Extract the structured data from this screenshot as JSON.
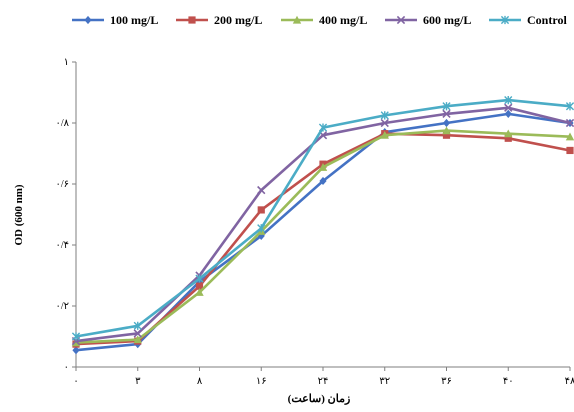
{
  "chart_data": {
    "type": "line",
    "categories": [
      "۰",
      "۳",
      "۸",
      "۱۶",
      "۲۴",
      "۳۲",
      "۳۶",
      "۴۰",
      "۴۸"
    ],
    "yticks": [
      "۰",
      "۰/۲",
      "۰/۴",
      "۰/۶",
      "۰/۸",
      "۱"
    ],
    "ylim": [
      0,
      1
    ],
    "ylabel": "OD (600 nm)",
    "xlabel": "زمان (ساعت)",
    "legend_position": "top",
    "grid": false,
    "series": [
      {
        "name": "100 mg/L",
        "color": "#4472C4",
        "marker": "diamond",
        "values": [
          0.055,
          0.075,
          0.28,
          0.43,
          0.61,
          0.77,
          0.8,
          0.83,
          0.8
        ]
      },
      {
        "name": "200 mg/L",
        "color": "#C0504D",
        "marker": "square",
        "values": [
          0.075,
          0.085,
          0.265,
          0.515,
          0.665,
          0.765,
          0.76,
          0.75,
          0.71
        ]
      },
      {
        "name": "400 mg/L",
        "color": "#9BBB59",
        "marker": "triangle",
        "values": [
          0.08,
          0.09,
          0.245,
          0.445,
          0.655,
          0.76,
          0.775,
          0.765,
          0.755
        ]
      },
      {
        "name": "600 mg/L",
        "color": "#8064A2",
        "marker": "x",
        "values": [
          0.085,
          0.11,
          0.3,
          0.58,
          0.76,
          0.8,
          0.83,
          0.85,
          0.8
        ]
      },
      {
        "name": "Control",
        "color": "#4BACC6",
        "marker": "asterisk",
        "values": [
          0.1,
          0.135,
          0.29,
          0.455,
          0.785,
          0.825,
          0.855,
          0.875,
          0.855
        ]
      }
    ]
  }
}
